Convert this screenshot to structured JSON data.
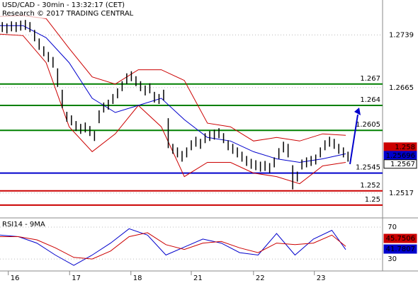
{
  "chart_data": [
    {
      "type": "ohlc",
      "title": "USD/CAD - 30min - 13:32:17 (CET)",
      "subtitle": "Research © 2017 TRADING CENTRAL",
      "xlim": [
        0,
        83
      ],
      "xticks": [
        {
          "value": 1.8,
          "label": "16"
        },
        {
          "value": 15.1,
          "label": "17"
        },
        {
          "value": 28.4,
          "label": "18"
        },
        {
          "value": 41.5,
          "label": "21"
        },
        {
          "value": 55.0,
          "label": "22"
        },
        {
          "value": 68.2,
          "label": "23"
        }
      ],
      "ylim": [
        1.2482,
        1.2788
      ],
      "yticks": [
        1.2517,
        1.2665,
        1.2739
      ],
      "grid": true,
      "bar_color": "#000000",
      "high": [
        1.2757,
        1.2755,
        1.2758,
        1.2757,
        1.2759,
        1.276,
        1.2757,
        1.2746,
        1.2734,
        1.2723,
        1.2715,
        1.2708,
        1.2692,
        1.2662,
        1.2631,
        1.2626,
        1.2618,
        1.2614,
        1.2616,
        1.2611,
        1.2604,
        1.2633,
        1.2644,
        1.2648,
        1.2656,
        1.2664,
        1.2674,
        1.2685,
        1.2688,
        1.2681,
        1.2674,
        1.2668,
        1.2671,
        1.2659,
        1.2656,
        1.2662,
        1.2622,
        1.2586,
        1.2581,
        1.2576,
        1.2581,
        1.2591,
        1.2596,
        1.2593,
        1.2601,
        1.2604,
        1.2606,
        1.2608,
        1.2601,
        1.2591,
        1.2586,
        1.2581,
        1.2575,
        1.2569,
        1.2565,
        1.2563,
        1.2561,
        1.2562,
        1.2559,
        1.2567,
        1.258,
        1.2589,
        1.2586,
        1.2556,
        1.2547,
        1.2564,
        1.2567,
        1.2569,
        1.2571,
        1.2581,
        1.2591,
        1.2596,
        1.2593,
        1.2586,
        1.2581,
        1.2575
      ],
      "low": [
        1.2743,
        1.2741,
        1.2744,
        1.2743,
        1.2745,
        1.2746,
        1.2743,
        1.273,
        1.2718,
        1.2709,
        1.2701,
        1.2693,
        1.2666,
        1.2636,
        1.2617,
        1.2612,
        1.2604,
        1.26,
        1.2602,
        1.2597,
        1.259,
        1.2615,
        1.263,
        1.2634,
        1.2642,
        1.265,
        1.266,
        1.267,
        1.2674,
        1.2667,
        1.266,
        1.2654,
        1.2657,
        1.2644,
        1.2642,
        1.2647,
        1.258,
        1.2572,
        1.2567,
        1.2561,
        1.2567,
        1.2577,
        1.2582,
        1.2579,
        1.2587,
        1.259,
        1.2592,
        1.2594,
        1.2587,
        1.2577,
        1.2572,
        1.2567,
        1.2561,
        1.2555,
        1.2551,
        1.2549,
        1.2547,
        1.2548,
        1.2545,
        1.2553,
        1.2565,
        1.2574,
        1.2567,
        1.2522,
        1.2533,
        1.255,
        1.2553,
        1.2555,
        1.2557,
        1.2567,
        1.2577,
        1.2582,
        1.2579,
        1.2572,
        1.2567,
        1.2561
      ],
      "series": [
        {
          "color": "#cc0000",
          "x": [
            0,
            5,
            10,
            15,
            20,
            25,
            30,
            35,
            40,
            45,
            50,
            55,
            60,
            65,
            70,
            75
          ],
          "values": [
            1.2765,
            1.2766,
            1.2762,
            1.272,
            1.268,
            1.267,
            1.269,
            1.269,
            1.2675,
            1.2615,
            1.261,
            1.259,
            1.2595,
            1.259,
            1.26,
            1.2598
          ]
        },
        {
          "color": "#cc0000",
          "x": [
            0,
            5,
            10,
            15,
            20,
            25,
            30,
            35,
            40,
            45,
            50,
            55,
            60,
            65,
            70,
            75
          ],
          "values": [
            1.274,
            1.2738,
            1.27,
            1.261,
            1.2575,
            1.26,
            1.264,
            1.261,
            1.254,
            1.256,
            1.256,
            1.2545,
            1.254,
            1.253,
            1.2555,
            1.256
          ]
        },
        {
          "color": "#0000cc",
          "x": [
            0,
            5,
            10,
            15,
            20,
            25,
            30,
            35,
            40,
            45,
            50,
            55,
            60,
            65,
            70,
            75
          ],
          "values": [
            1.2752,
            1.2752,
            1.2735,
            1.27,
            1.265,
            1.263,
            1.264,
            1.265,
            1.262,
            1.2595,
            1.259,
            1.2575,
            1.2565,
            1.256,
            1.2565,
            1.2572
          ]
        }
      ],
      "levels": [
        {
          "value": 1.267,
          "color": "#008000"
        },
        {
          "value": 1.264,
          "color": "#008000"
        },
        {
          "value": 1.2605,
          "color": "#008000"
        },
        {
          "value": 1.2545,
          "color": "#0000cc"
        },
        {
          "value": 1.252,
          "color": "#cc0000"
        },
        {
          "value": 1.25,
          "color": "#cc0000"
        }
      ],
      "price_tags": [
        {
          "value": 1.258,
          "color": "#cc0000"
        },
        {
          "value": 1.25696,
          "color": "#0000cc"
        },
        {
          "value": 1.2567,
          "color": "#ffffff"
        }
      ]
    },
    {
      "type": "line",
      "title": "RSI14 - 9MA",
      "xlim": [
        0,
        83
      ],
      "ylim": [
        15,
        78
      ],
      "yticks": [
        30,
        70
      ],
      "series": [
        {
          "color": "#0000cc",
          "x": [
            0,
            4,
            8,
            12,
            16,
            20,
            24,
            28,
            32,
            36,
            40,
            44,
            48,
            52,
            56,
            60,
            64,
            68,
            72,
            75
          ],
          "values": [
            60,
            58,
            50,
            35,
            22,
            35,
            50,
            68,
            60,
            35,
            45,
            55,
            50,
            38,
            35,
            62,
            35,
            55,
            66,
            41.7807
          ]
        },
        {
          "color": "#cc0000",
          "x": [
            0,
            4,
            8,
            12,
            16,
            20,
            24,
            28,
            32,
            36,
            40,
            44,
            48,
            52,
            56,
            60,
            64,
            68,
            72,
            75
          ],
          "values": [
            58,
            58,
            54,
            44,
            32,
            30,
            40,
            58,
            63,
            48,
            42,
            50,
            52,
            44,
            38,
            50,
            48,
            50,
            60,
            45.7506
          ]
        }
      ],
      "tags": [
        {
          "value": 45.7506,
          "color": "#cc0000"
        },
        {
          "value": 41.7807,
          "color": "#0000cc"
        }
      ]
    }
  ]
}
